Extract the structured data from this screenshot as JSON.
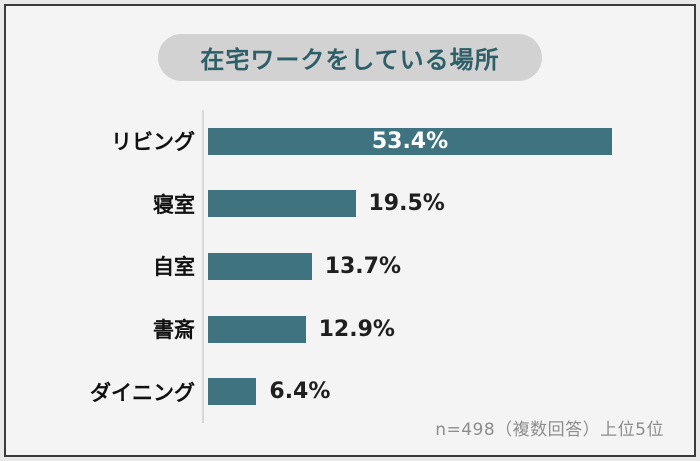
{
  "title": "在宅ワークをしている場所",
  "footer_note": "n=498（複数回答）上位5位",
  "colors": {
    "bar": "#3f7380",
    "title_text": "#2e5f68",
    "pill_bg": "#d2d2d2",
    "card_bg": "#f4f4f4",
    "outer_bg": "#e9e9e9",
    "border": "#3b3b3b",
    "axis_line": "#d8d8d8",
    "value_label_inside": "#ffffff",
    "value_label_outside": "#1f1f1f",
    "footer_text": "#8d8d8d"
  },
  "chart_data": {
    "type": "bar",
    "orientation": "horizontal",
    "title": "在宅ワークをしている場所",
    "categories": [
      "リビング",
      "寝室",
      "自室",
      "書斎",
      "ダイニング"
    ],
    "values": [
      53.4,
      19.5,
      13.7,
      12.9,
      6.4
    ],
    "value_labels": [
      "53.4%",
      "19.5%",
      "13.7%",
      "12.9%",
      "6.4%"
    ],
    "unit": "%",
    "xlim": [
      0,
      56
    ],
    "grid": false,
    "legend": false,
    "note": "n=498（複数回答）上位5位"
  }
}
